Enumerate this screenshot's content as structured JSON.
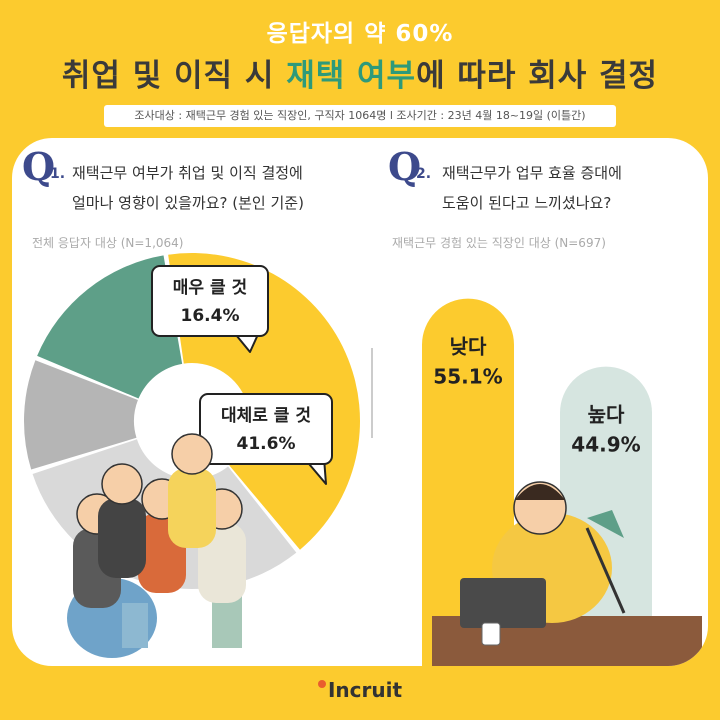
{
  "header": {
    "subtitle": "응답자의 약 60%",
    "title_part1": "취업 및 이직 시 ",
    "title_highlight": "재택 여부",
    "title_part2": "에 따라 회사 결정",
    "survey_info": "조사대상 : 재택근무 경험 있는 직장인, 구직자 1064명 l 조사기간 : 23년 4월 18~19일 (이틀간)"
  },
  "q1": {
    "mark": "Q",
    "num": "1.",
    "line1": "재택근무 여부가 취업 및 이직 결정에",
    "line2": "얼마나 영향이 있을까요? (본인 기준)",
    "note": "전체 응답자 대상 (N=1,064)"
  },
  "q2": {
    "mark": "Q",
    "num": "2.",
    "line1": "재택근무가 업무 효율 증대에",
    "line2": "도움이 된다고 느끼셨나요?",
    "note": "재택근무 경험 있는 직장인 대상 (N=697)"
  },
  "footer": {
    "logo": "Incruit"
  },
  "colors": {
    "yellow": "#FCCB2E",
    "green": "#5E9F88",
    "light_gray": "#D9D9D9",
    "mid_gray": "#B5B5B5",
    "mint": "#D6E5E0",
    "navy": "#3D4A8C"
  },
  "chart_data": [
    {
      "type": "pie",
      "slices": [
        {
          "label": "매우 클 것",
          "value": 16.4,
          "display": "16.4%",
          "color": "#5E9F88"
        },
        {
          "label": "대체로 클 것",
          "value": 41.6,
          "display": "41.6%",
          "color": "#FCCB2E"
        },
        {
          "label": "",
          "value": 31.0,
          "color": "#D9D9D9"
        },
        {
          "label": "",
          "value": 11.0,
          "color": "#B5B5B5"
        }
      ]
    },
    {
      "type": "bar",
      "categories": [
        "낮다",
        "높다"
      ],
      "values": [
        55.1,
        44.9
      ],
      "displays": [
        "55.1%",
        "44.9%"
      ],
      "colors": [
        "#FCCB2E",
        "#D6E5E0"
      ]
    }
  ]
}
